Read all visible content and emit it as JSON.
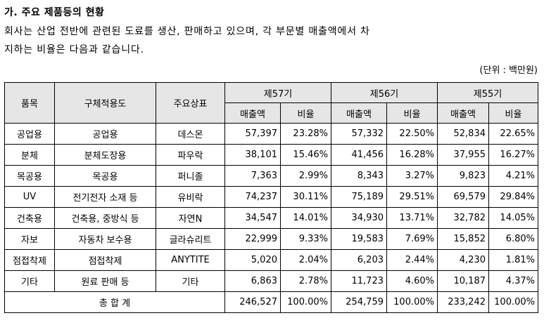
{
  "heading": "가. 주요 제품등의 현황",
  "paragraph_line1": "회사는 산업 전반에 관련된 도료를 생산, 판매하고 있으며, 각 부문별 매출액에서 차",
  "paragraph_line2": "지하는 비율은 다음과 같습니다.",
  "unit": "(단위 : 백만원)",
  "table": {
    "headers": {
      "item": "품목",
      "application": "구체적용도",
      "brand": "주요상표",
      "periods": [
        "제57기",
        "제56기",
        "제55기"
      ],
      "sales": "매출액",
      "ratio": "비율"
    },
    "rows": [
      {
        "item": "공업용",
        "application": "공업용",
        "brand": "데스몬",
        "p57_sales": "57,397",
        "p57_ratio": "23.28%",
        "p56_sales": "57,332",
        "p56_ratio": "22.50%",
        "p55_sales": "52,834",
        "p55_ratio": "22.65%"
      },
      {
        "item": "분체",
        "application": "분체도장용",
        "brand": "파우락",
        "p57_sales": "38,101",
        "p57_ratio": "15.46%",
        "p56_sales": "41,456",
        "p56_ratio": "16.28%",
        "p55_sales": "37,955",
        "p55_ratio": "16.27%"
      },
      {
        "item": "목공용",
        "application": "목공용",
        "brand": "퍼니졸",
        "p57_sales": "7,363",
        "p57_ratio": "2.99%",
        "p56_sales": "8,343",
        "p56_ratio": "3.27%",
        "p55_sales": "9,823",
        "p55_ratio": "4.21%"
      },
      {
        "item": "UV",
        "application": "전기전자 소재 등",
        "brand": "유비락",
        "p57_sales": "74,237",
        "p57_ratio": "30.11%",
        "p56_sales": "75,189",
        "p56_ratio": "29.51%",
        "p55_sales": "69,579",
        "p55_ratio": "29.84%"
      },
      {
        "item": "건축용",
        "application": "건축용, 중방식 등",
        "brand": "자연N",
        "p57_sales": "34,547",
        "p57_ratio": "14.01%",
        "p56_sales": "34,930",
        "p56_ratio": "13.71%",
        "p55_sales": "32,782",
        "p55_ratio": "14.05%"
      },
      {
        "item": "자보",
        "application": "자동차 보수용",
        "brand": "글라슈리트",
        "p57_sales": "22,999",
        "p57_ratio": "9.33%",
        "p56_sales": "19,583",
        "p56_ratio": "7.69%",
        "p55_sales": "15,852",
        "p55_ratio": "6.80%"
      },
      {
        "item": "점접착제",
        "application": "점접착제",
        "brand": "ANYTITE",
        "p57_sales": "5,020",
        "p57_ratio": "2.04%",
        "p56_sales": "6,203",
        "p56_ratio": "2.44%",
        "p55_sales": "4,230",
        "p55_ratio": "1.81%"
      },
      {
        "item": "기타",
        "application": "원료 판매 등",
        "brand": "기타",
        "p57_sales": "6,863",
        "p57_ratio": "2.78%",
        "p56_sales": "11,723",
        "p56_ratio": "4.60%",
        "p55_sales": "10,187",
        "p55_ratio": "4.37%"
      }
    ],
    "total": {
      "label": "총 합 계",
      "p57_sales": "246,527",
      "p57_ratio": "100.00%",
      "p56_sales": "254,759",
      "p56_ratio": "100.00%",
      "p55_sales": "233,242",
      "p55_ratio": "100.00%"
    }
  }
}
